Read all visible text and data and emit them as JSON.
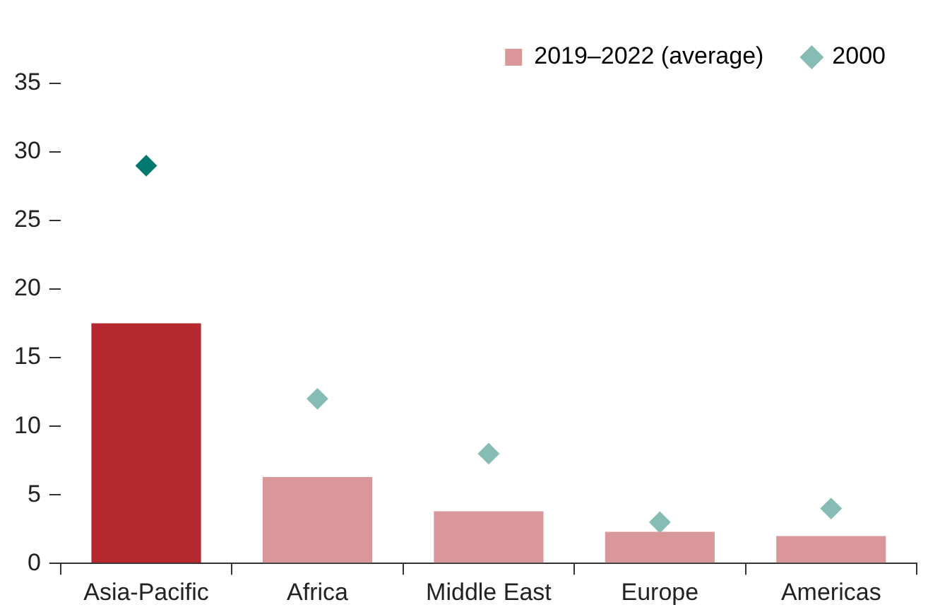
{
  "chart_data": {
    "type": "bar",
    "categories": [
      "Asia-Pacific",
      "Africa",
      "Middle East",
      "Europe",
      "Americas"
    ],
    "series": [
      {
        "name": "2019–2022 (average)",
        "color": "#d9979a",
        "colors": [
          "#b5282e",
          "#d9979a",
          "#d9979a",
          "#d9979a",
          "#d9979a"
        ],
        "values": [
          17.5,
          6.3,
          3.8,
          2.3,
          2.0
        ]
      },
      {
        "name": "2000",
        "type": "scatter",
        "color": "#85bdb5",
        "colors": [
          "#007a6e",
          "#85bdb5",
          "#85bdb5",
          "#85bdb5",
          "#85bdb5"
        ],
        "x": [
          "Asia-Pacific",
          "Africa",
          "Middle East",
          "Europe",
          "Americas"
        ],
        "values": [
          29,
          12,
          8,
          3,
          4
        ]
      }
    ],
    "ylim": [
      0,
      35
    ],
    "yticks": [
      0,
      5,
      10,
      15,
      20,
      25,
      30,
      35
    ],
    "grid": false,
    "legend": "top right",
    "marker": "diamond"
  }
}
